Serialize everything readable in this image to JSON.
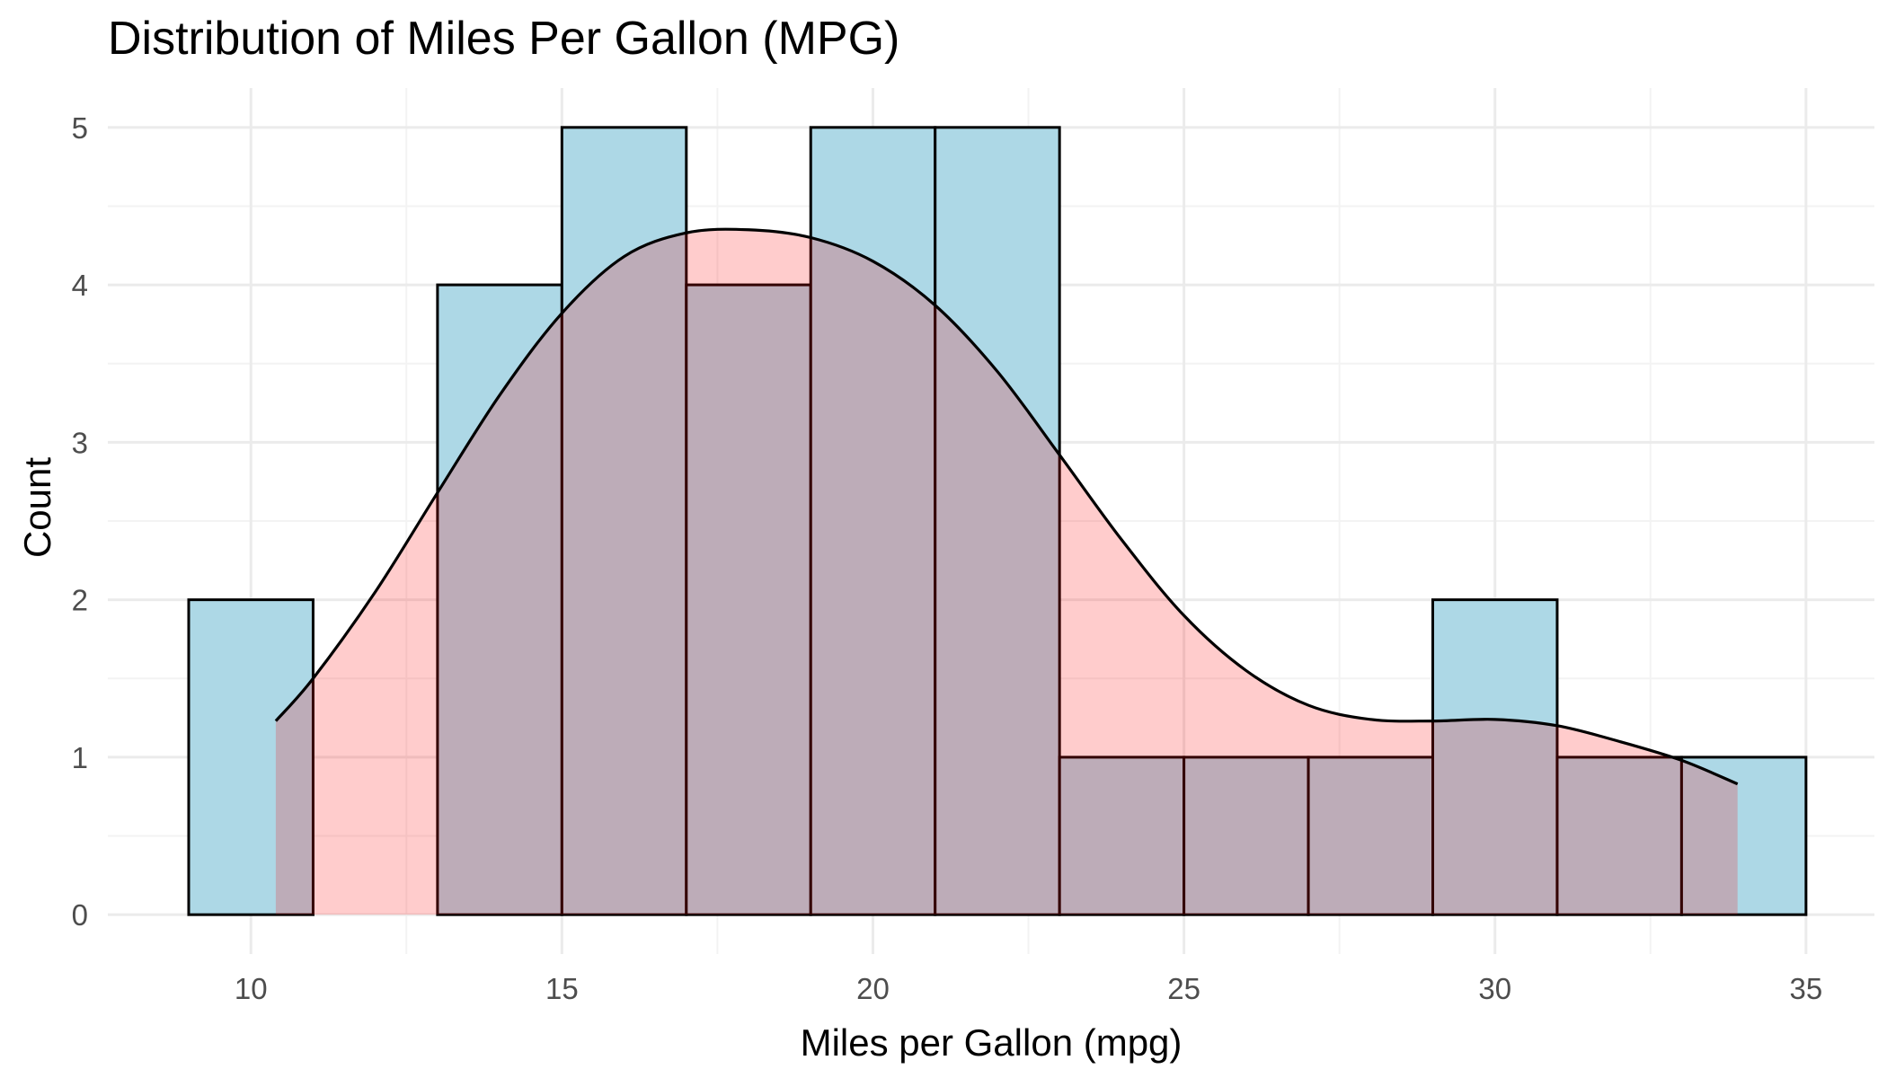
{
  "chart_data": {
    "type": "histogram",
    "title": "Distribution of Miles Per Gallon (MPG)",
    "xlabel": "Miles per Gallon (mpg)",
    "ylabel": "Count",
    "xlim": [
      7.7,
      36.1
    ],
    "ylim": [
      -0.25,
      5.25
    ],
    "x_ticks": [
      10,
      15,
      20,
      25,
      30,
      35
    ],
    "y_ticks": [
      0,
      1,
      2,
      3,
      4,
      5
    ],
    "x_tick_labels": [
      "10",
      "15",
      "20",
      "25",
      "30",
      "35"
    ],
    "y_tick_labels": [
      "0",
      "1",
      "2",
      "3",
      "4",
      "5"
    ],
    "grid": true,
    "bins": [
      {
        "x0": 9,
        "x1": 11,
        "count": 2
      },
      {
        "x0": 11,
        "x1": 13,
        "count": 0
      },
      {
        "x0": 13,
        "x1": 15,
        "count": 4
      },
      {
        "x0": 15,
        "x1": 17,
        "count": 5
      },
      {
        "x0": 17,
        "x1": 19,
        "count": 4
      },
      {
        "x0": 19,
        "x1": 21,
        "count": 5
      },
      {
        "x0": 21,
        "x1": 23,
        "count": 5
      },
      {
        "x0": 23,
        "x1": 25,
        "count": 1
      },
      {
        "x0": 25,
        "x1": 27,
        "count": 1
      },
      {
        "x0": 27,
        "x1": 29,
        "count": 1
      },
      {
        "x0": 29,
        "x1": 31,
        "count": 2
      },
      {
        "x0": 31,
        "x1": 33,
        "count": 1
      },
      {
        "x0": 33,
        "x1": 35,
        "count": 1
      }
    ],
    "density_curve": {
      "x": [
        10.4,
        11,
        12,
        13,
        14,
        15,
        16,
        17,
        18,
        19,
        20,
        21,
        22,
        23,
        24,
        25,
        26,
        27,
        28,
        29,
        30,
        31,
        32,
        33,
        33.9
      ],
      "y": [
        1.23,
        1.5,
        2.05,
        2.68,
        3.3,
        3.82,
        4.18,
        4.33,
        4.35,
        4.3,
        4.15,
        3.87,
        3.45,
        2.92,
        2.38,
        1.9,
        1.55,
        1.33,
        1.24,
        1.23,
        1.24,
        1.2,
        1.1,
        0.98,
        0.83
      ]
    },
    "colors": {
      "bar_fill": "#add8e6",
      "density_fill": "#ff0000",
      "density_fill_opacity": 0.2,
      "outline": "#000000",
      "grid": "#ebebeb",
      "background": "#ffffff"
    }
  }
}
